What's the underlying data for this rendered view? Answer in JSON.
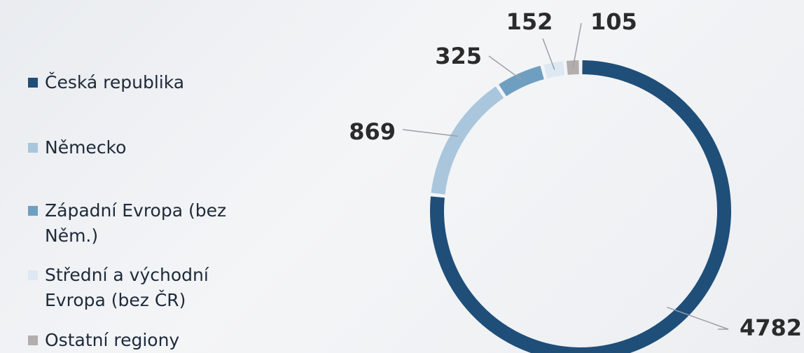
{
  "chart_data": {
    "type": "donut",
    "categories": [
      "Česká republika",
      "Německo",
      "Západní Evropa (bez Něm.)",
      "Střední a východní Evropa (bez ČR)",
      "Ostatní regiony"
    ],
    "values": [
      4782,
      869,
      325,
      152,
      105
    ],
    "colors": [
      "#1f4e79",
      "#a9c6dc",
      "#6f9fc0",
      "#dde8f2",
      "#b3aeae"
    ],
    "legend": "left"
  }
}
